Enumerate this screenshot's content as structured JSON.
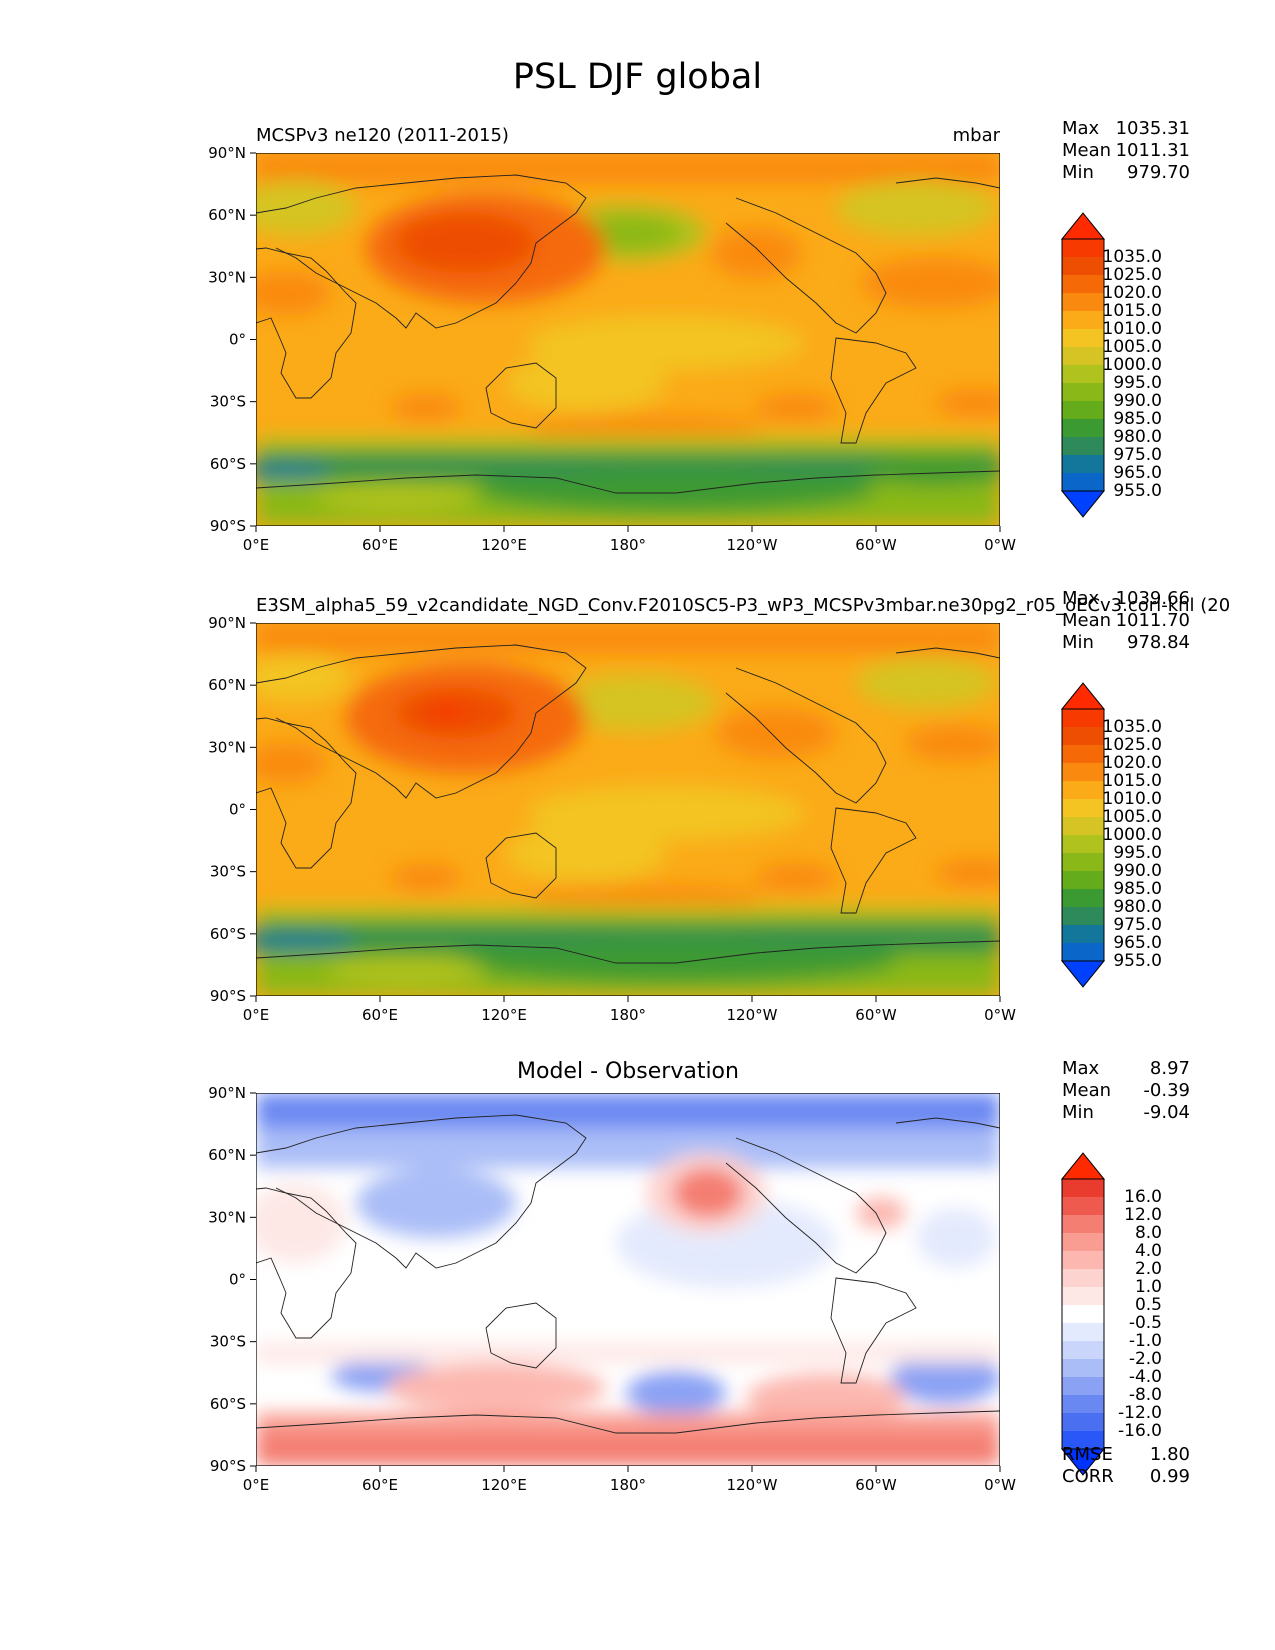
{
  "title": "PSL DJF global",
  "panels": [
    {
      "id": "test",
      "title_left": "MCSPv3 ne120 (2011-2015)",
      "title_right": "mbar",
      "stats": [
        {
          "label": "Max",
          "value": "1035.31"
        },
        {
          "label": "Mean",
          "value": "1011.31"
        },
        {
          "label": "Min",
          "value": "979.70"
        }
      ],
      "colorbar": {
        "labels": [
          "1035.0",
          "1025.0",
          "1020.0",
          "1015.0",
          "1010.0",
          "1005.0",
          "1000.0",
          "995.0",
          "990.0",
          "985.0",
          "980.0",
          "975.0",
          "965.0",
          "955.0"
        ]
      }
    },
    {
      "id": "reference",
      "title_left": "E3SM_alpha5_59_v2candidate_NGD_Conv.F2010SC5-P3_wP3_MCSPv3mbar.ne30pg2_r05_oECv3.cori-knl (20",
      "title_right": "",
      "stats": [
        {
          "label": "Max",
          "value": "1039.66"
        },
        {
          "label": "Mean",
          "value": "1011.70"
        },
        {
          "label": "Min",
          "value": "978.84"
        }
      ],
      "colorbar": {
        "labels": [
          "1035.0",
          "1025.0",
          "1020.0",
          "1015.0",
          "1010.0",
          "1005.0",
          "1000.0",
          "995.0",
          "990.0",
          "985.0",
          "980.0",
          "975.0",
          "965.0",
          "955.0"
        ]
      }
    },
    {
      "id": "difference",
      "title_center": "Model - Observation",
      "stats": [
        {
          "label": "Max",
          "value": "8.97"
        },
        {
          "label": "Mean",
          "value": "-0.39"
        },
        {
          "label": "Min",
          "value": "-9.04"
        }
      ],
      "colorbar": {
        "labels": [
          "16.0",
          "12.0",
          "8.0",
          "4.0",
          "2.0",
          "1.0",
          "0.5",
          "-0.5",
          "-1.0",
          "-2.0",
          "-4.0",
          "-8.0",
          "-12.0",
          "-16.0"
        ]
      },
      "metrics": [
        {
          "label": "RMSE",
          "value": "1.80"
        },
        {
          "label": "CORR",
          "value": "0.99"
        }
      ]
    }
  ],
  "chart_data": {
    "type": "heatmap",
    "title": "PSL DJF global",
    "variable": "PSL",
    "season": "DJF",
    "units": "mbar",
    "xaxis": {
      "ticks": [
        "0°E",
        "60°E",
        "120°E",
        "180°",
        "120°W",
        "60°W",
        "0°W"
      ],
      "range": [
        0,
        360
      ]
    },
    "yaxis": {
      "ticks": [
        "90°N",
        "60°N",
        "30°N",
        "0°",
        "30°S",
        "60°S",
        "90°S"
      ],
      "range": [
        -90,
        90
      ]
    },
    "main_levels": [
      955,
      965,
      975,
      980,
      985,
      990,
      995,
      1000,
      1005,
      1010,
      1015,
      1020,
      1025,
      1035
    ],
    "main_colors": [
      "#0040ff",
      "#0a66c8",
      "#12779a",
      "#2e8a5a",
      "#3c9a32",
      "#64ac1c",
      "#8ab819",
      "#b0c21e",
      "#d5c424",
      "#f3c422",
      "#fbaa18",
      "#fa8a0f",
      "#f56a07",
      "#ed4e02",
      "#f73a00",
      "#ff2a00"
    ],
    "diff_levels": [
      -16,
      -12,
      -8,
      -4,
      -2,
      -1,
      -0.5,
      0.5,
      1,
      2,
      4,
      8,
      12,
      16
    ],
    "diff_colors": [
      "#0033ff",
      "#2a58f8",
      "#4a6ff0",
      "#6a88f2",
      "#8ba2f4",
      "#aabdf7",
      "#c9d5fa",
      "#e4eafd",
      "#ffffff",
      "#fde8e6",
      "#fdd3cf",
      "#fcb8b0",
      "#f99d92",
      "#f47e72",
      "#ee5a4e",
      "#e93c2e",
      "#ff2a00"
    ],
    "series": [
      {
        "name": "MCSPv3 ne120 (2011-2015)",
        "max": 1035.31,
        "mean": 1011.31,
        "min": 979.7
      },
      {
        "name": "E3SM_alpha5_59_v2candidate_NGD_Conv.F2010SC5-P3_wP3_MCSPv3mbar.ne30pg2_r05_oECv3.cori-knl",
        "max": 1039.66,
        "mean": 1011.7,
        "min": 978.84
      },
      {
        "name": "Model - Observation",
        "max": 8.97,
        "mean": -0.39,
        "min": -9.04,
        "rmse": 1.8,
        "corr": 0.99
      }
    ],
    "legend": "right"
  }
}
